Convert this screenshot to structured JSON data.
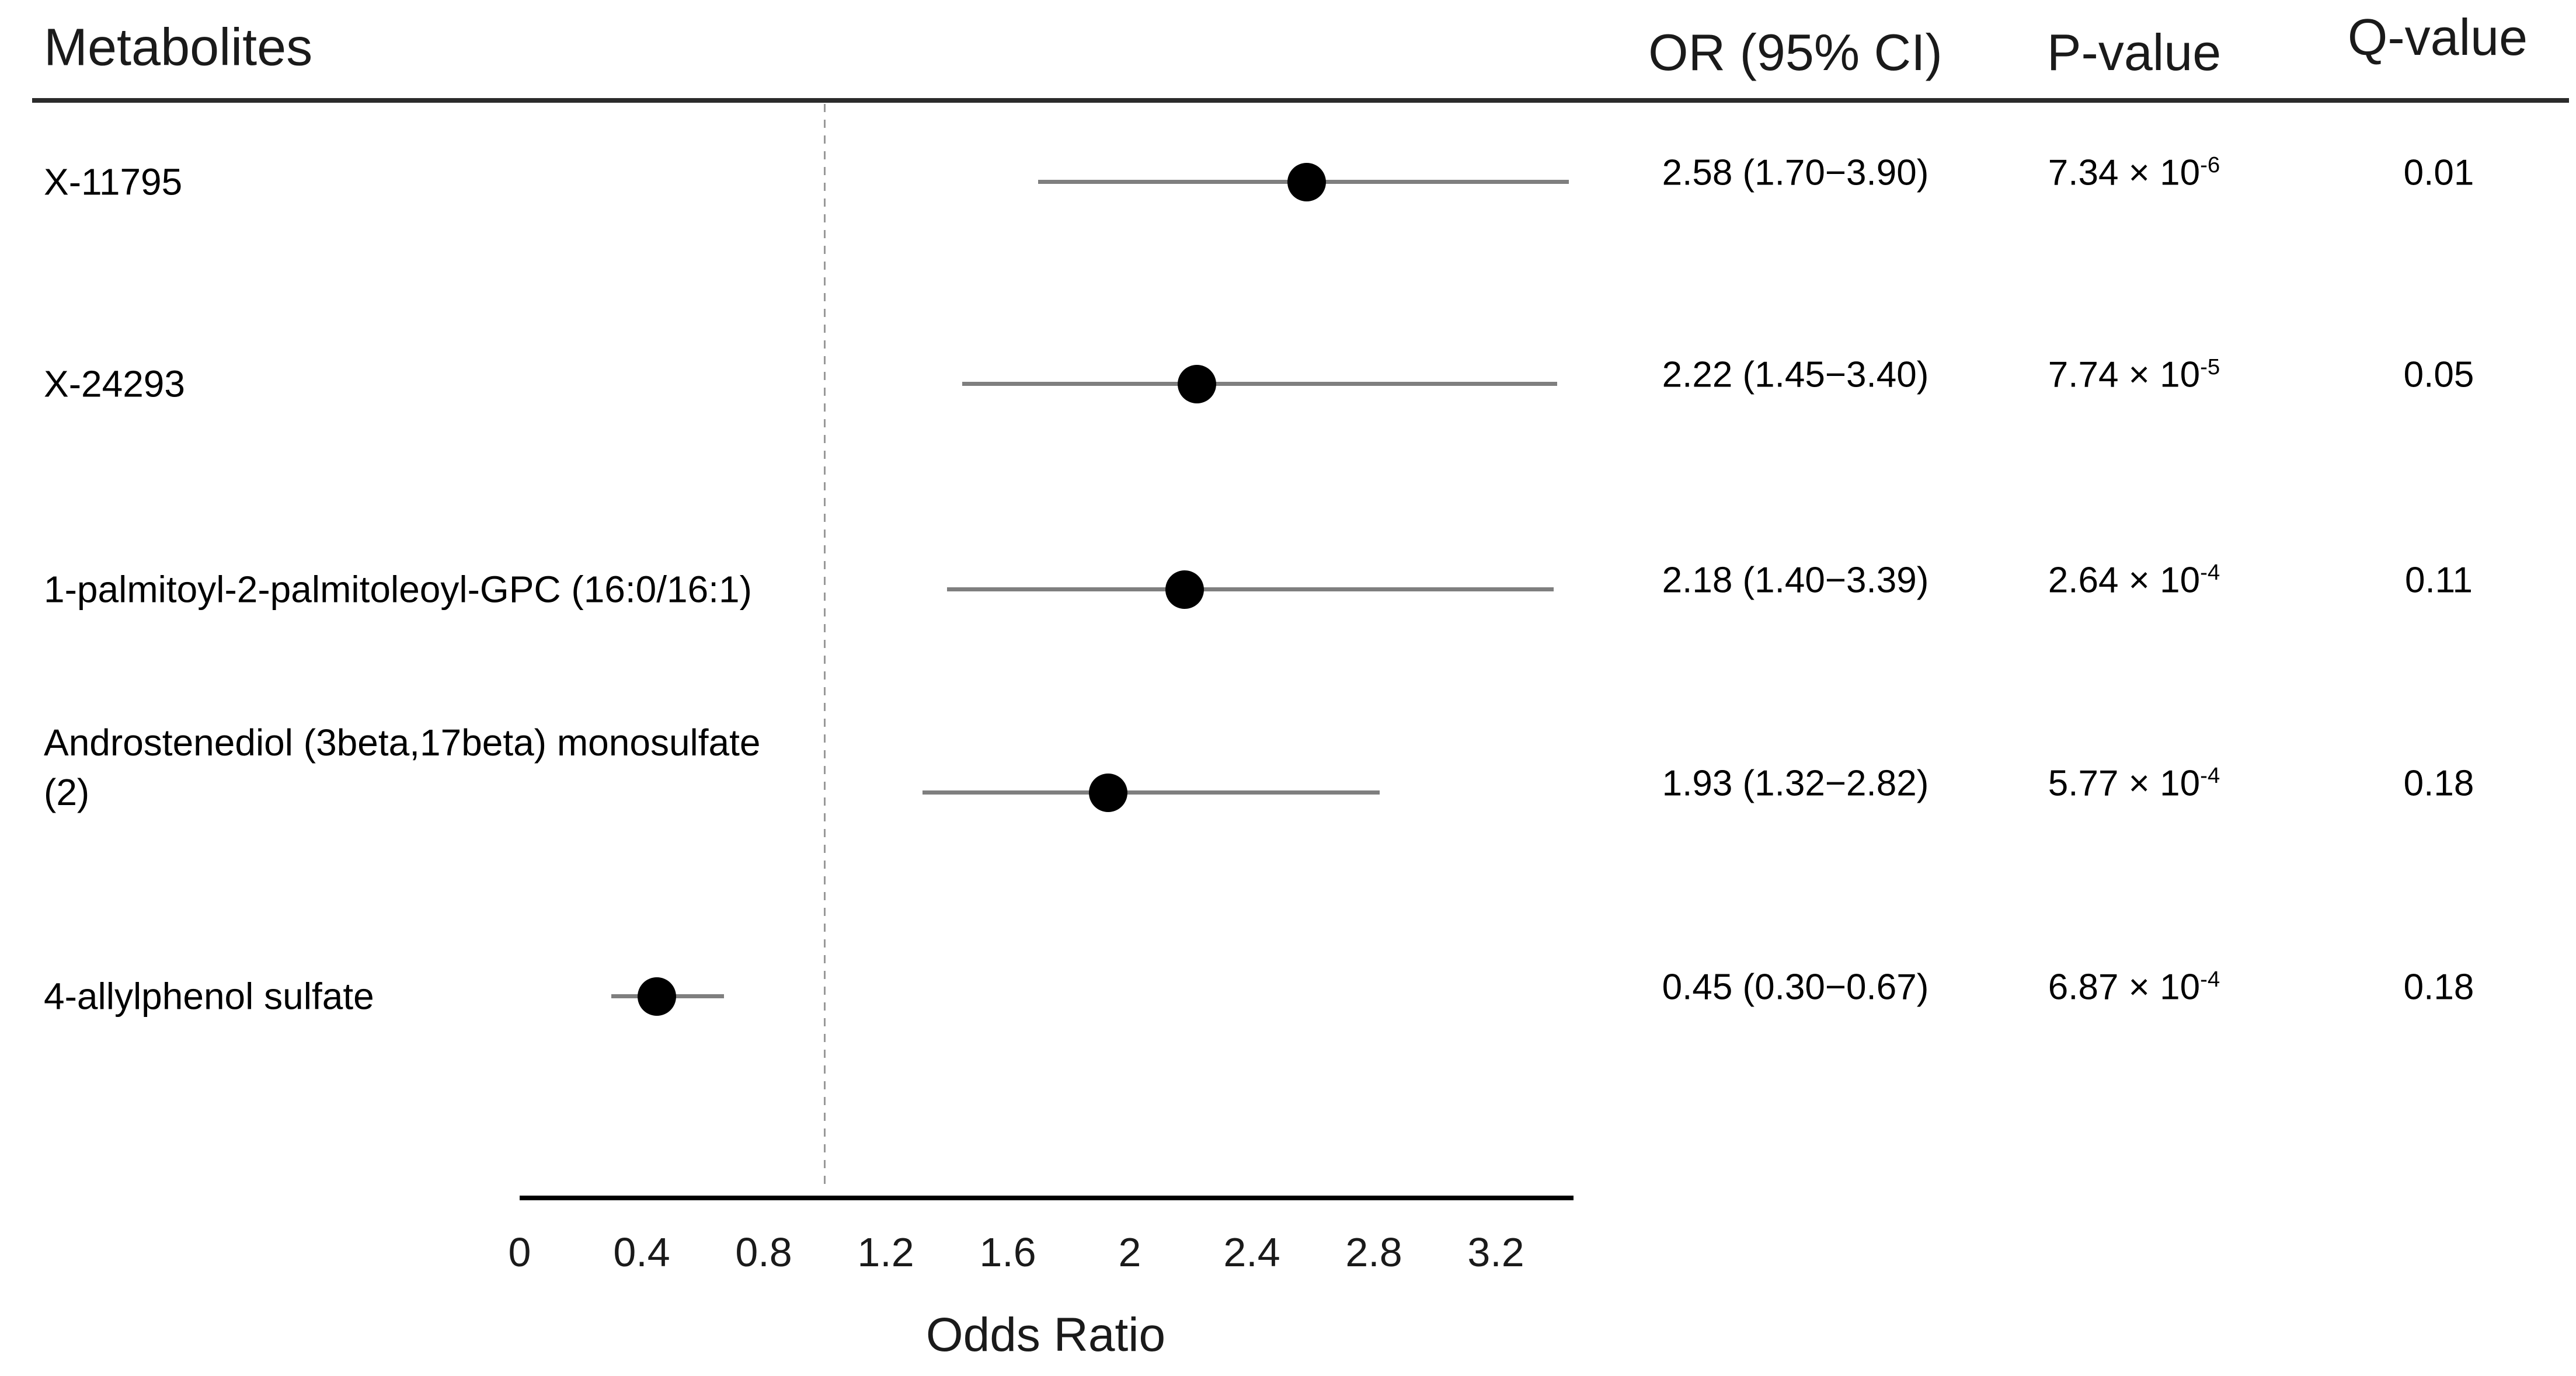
{
  "headers": {
    "metabolites": "Metabolites",
    "or_ci": "OR (95% CI)",
    "p_value": "P-value",
    "q_value": "Q-value"
  },
  "chart_data": {
    "type": "forest",
    "title": "",
    "xlabel": "Odds Ratio",
    "ylabel": "",
    "grid": false,
    "x_ticks": [
      0,
      0.4,
      0.8,
      1.2,
      1.6,
      2,
      2.4,
      2.8,
      3.2
    ],
    "x_axis_min": 0,
    "x_axis_max": 3.44,
    "reference_line_x": 1,
    "point_color": "#000000",
    "ci_line_color": "#7f7f7f",
    "reference_line_color": "#999999",
    "rows": [
      {
        "label_lines": [
          "X-11795"
        ],
        "or": 2.58,
        "ci_low": 1.7,
        "ci_high": 3.9,
        "or_ci_text": "2.58 (1.70−3.90)",
        "p_base": "7.34 × 10",
        "p_exponent": "-6",
        "q_text": "0.01"
      },
      {
        "label_lines": [
          "X-24293"
        ],
        "or": 2.22,
        "ci_low": 1.45,
        "ci_high": 3.4,
        "or_ci_text": "2.22 (1.45−3.40)",
        "p_base": "7.74 × 10",
        "p_exponent": "-5",
        "q_text": "0.05"
      },
      {
        "label_lines": [
          "1-palmitoyl-2-palmitoleoyl-GPC (16:0/16:1)"
        ],
        "or": 2.18,
        "ci_low": 1.4,
        "ci_high": 3.39,
        "or_ci_text": "2.18 (1.40−3.39)",
        "p_base": "2.64 × 10",
        "p_exponent": "-4",
        "q_text": "0.11"
      },
      {
        "label_lines": [
          "Androstenediol (3beta,17beta) monosulfate",
          "(2)"
        ],
        "or": 1.93,
        "ci_low": 1.32,
        "ci_high": 2.82,
        "or_ci_text": "1.93 (1.32−2.82)",
        "p_base": "5.77 × 10",
        "p_exponent": "-4",
        "q_text": "0.18"
      },
      {
        "label_lines": [
          "4-allylphenol sulfate"
        ],
        "or": 0.45,
        "ci_low": 0.3,
        "ci_high": 0.67,
        "or_ci_text": "0.45 (0.30−0.67)",
        "p_base": "6.87 × 10",
        "p_exponent": "-4",
        "q_text": "0.18"
      }
    ]
  }
}
